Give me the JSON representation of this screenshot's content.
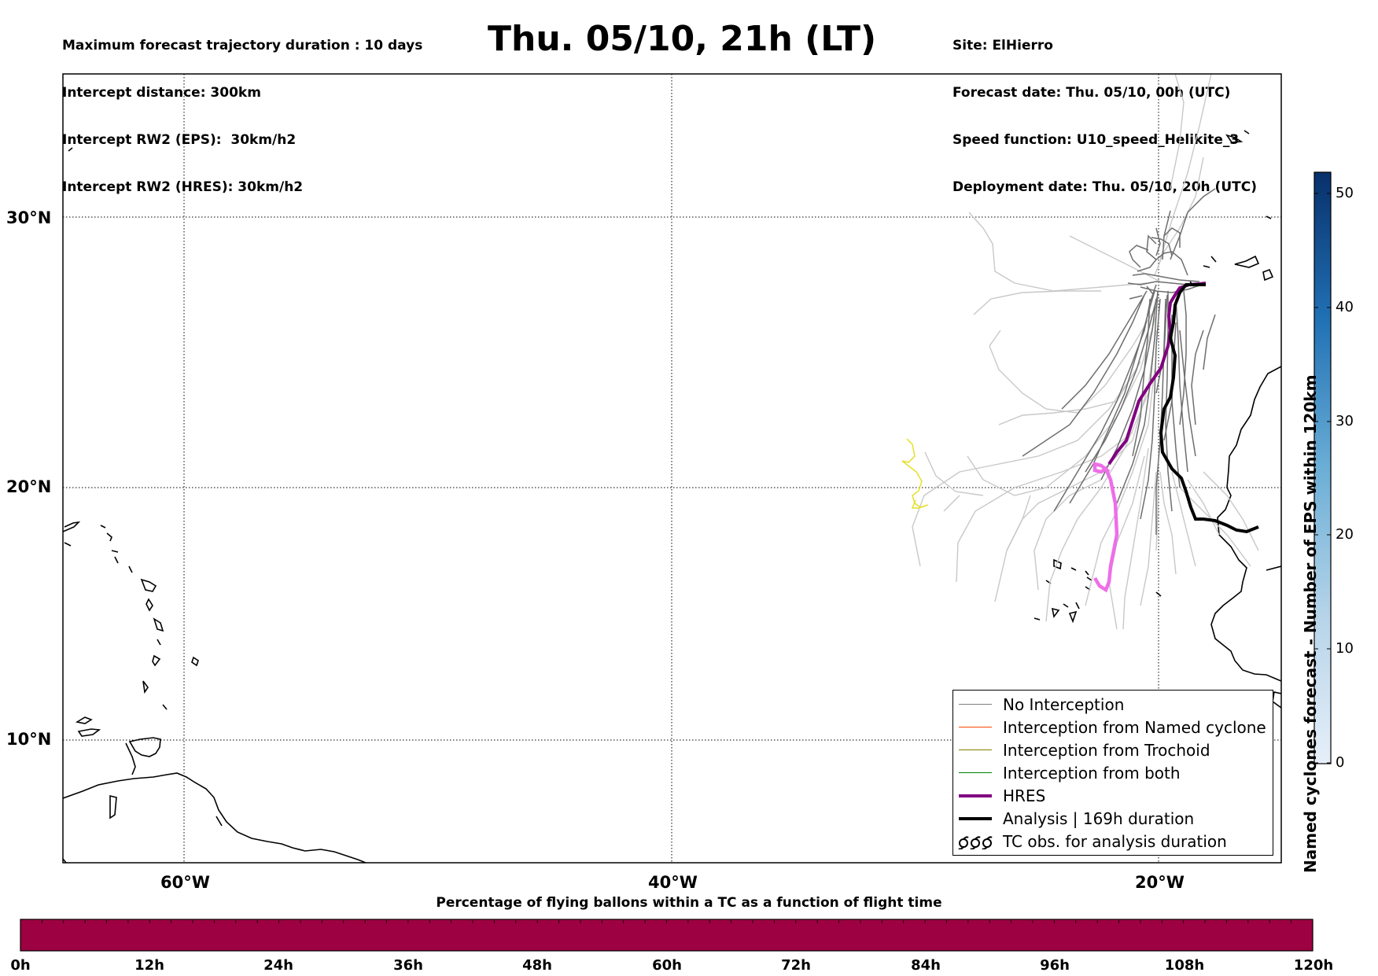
{
  "header_left": [
    "Maximum forecast trajectory duration : 10 days",
    "Intercept distance: 300km",
    "Intercept RW2 (EPS):  30km/h2",
    "Intercept RW2 (HRES): 30km/h2"
  ],
  "title": "Thu. 05/10, 21h (LT)",
  "header_right": [
    "Site: ElHierro",
    "Forecast date: Thu. 05/10, 00h (UTC)",
    "Speed function: U10_speed_Helikite_3",
    "Deployment date: Thu. 05/10, 20h (UTC)"
  ],
  "map": {
    "lat_labels": [
      "30°N",
      "20°N",
      "10°N"
    ],
    "lon_labels": [
      "60°W",
      "40°W",
      "20°W"
    ],
    "lat_range": [
      5.5,
      35.3
    ],
    "lon_range": [
      -65,
      -15
    ],
    "gridlines": "dotted"
  },
  "legend": [
    {
      "label": "No Interception",
      "color": "#808080",
      "width": 1.5
    },
    {
      "label": "Interception from Named cyclone",
      "color": "#ff4500",
      "width": 1.5
    },
    {
      "label": "Interception from Trochoid",
      "color": "#808000",
      "width": 1.5
    },
    {
      "label": "Interception from both",
      "color": "#008000",
      "width": 1.5
    },
    {
      "label": "HRES",
      "color": "#800080",
      "width": 4
    },
    {
      "label": "Analysis | 169h duration",
      "color": "#000000",
      "width": 4
    },
    {
      "label": "TC obs. for analysis duration",
      "icon": "cyclone-symbols-icon"
    }
  ],
  "colorbar_right": {
    "label": "Named cyclones forecast - Number of EPS within 120km",
    "ticks": [
      "0",
      "10",
      "20",
      "30",
      "40",
      "50"
    ],
    "range": [
      0,
      52
    ],
    "color_low": "#e6eff9",
    "color_high": "#08306b"
  },
  "colorbar_bottom": {
    "title": "Percentage of flying ballons within a TC as a function of flight time",
    "ticks": [
      "0h",
      "12h",
      "24h",
      "36h",
      "48h",
      "60h",
      "72h",
      "84h",
      "96h",
      "108h",
      "120h"
    ],
    "fill_color": "#9e0142"
  }
}
